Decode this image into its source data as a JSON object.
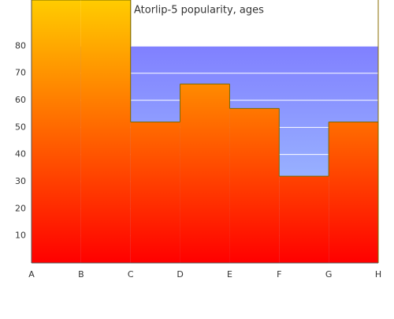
{
  "chart_data": {
    "type": "step-area",
    "title": "Atorlip-5 popularity, ages",
    "categories": [
      "A",
      "B",
      "C",
      "D",
      "E",
      "F",
      "G",
      "H"
    ],
    "values": [
      97,
      97,
      52,
      66,
      57,
      32,
      52,
      null
    ],
    "ylim": [
      0,
      97
    ],
    "yticks": [
      10,
      20,
      30,
      40,
      50,
      60,
      70,
      80
    ],
    "grid": true
  }
}
